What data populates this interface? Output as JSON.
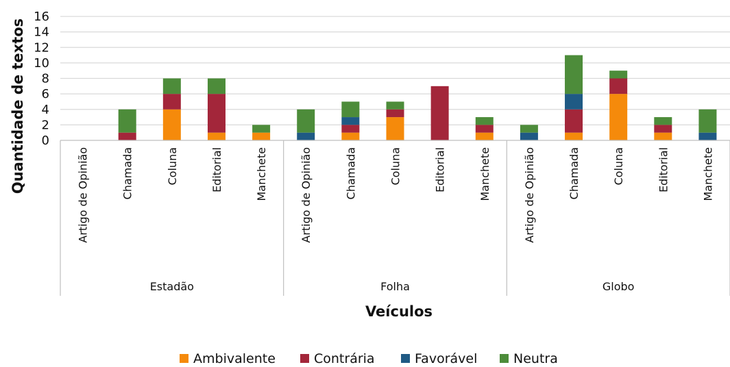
{
  "chart_data": {
    "type": "bar",
    "stacked": true,
    "title": "",
    "xlabel": "Veículos",
    "ylabel": "Quantidade de textos",
    "ylim": [
      0,
      16
    ],
    "yticks": [
      0,
      2,
      4,
      6,
      8,
      10,
      12,
      14,
      16
    ],
    "grid": true,
    "legend_position": "bottom",
    "groups": [
      {
        "name": "Estadão",
        "categories": [
          "Artigo de Opinião",
          "Chamada",
          "Coluna",
          "Editorial",
          "Manchete"
        ]
      },
      {
        "name": "Folha",
        "categories": [
          "Artigo de Opinião",
          "Chamada",
          "Coluna",
          "Editorial",
          "Manchete"
        ]
      },
      {
        "name": "Globo",
        "categories": [
          "Artigo de Opinião",
          "Chamada",
          "Coluna",
          "Editorial",
          "Manchete"
        ]
      }
    ],
    "series": [
      {
        "name": "Ambivalente",
        "color": "#F58A0B",
        "values": [
          0,
          0,
          4,
          1,
          1,
          0,
          1,
          3,
          0,
          1,
          0,
          1,
          6,
          1,
          0
        ]
      },
      {
        "name": "Contrária",
        "color": "#A3263A",
        "values": [
          0,
          1,
          2,
          5,
          0,
          0,
          1,
          1,
          7,
          1,
          0,
          3,
          2,
          1,
          0
        ]
      },
      {
        "name": "Favorável",
        "color": "#1F5A84",
        "values": [
          0,
          0,
          0,
          0,
          0,
          1,
          1,
          0,
          0,
          0,
          1,
          2,
          0,
          0,
          1
        ]
      },
      {
        "name": "Neutra",
        "color": "#4D8C3A",
        "values": [
          0,
          3,
          2,
          2,
          1,
          3,
          2,
          1,
          0,
          1,
          1,
          5,
          1,
          1,
          3
        ]
      }
    ]
  }
}
